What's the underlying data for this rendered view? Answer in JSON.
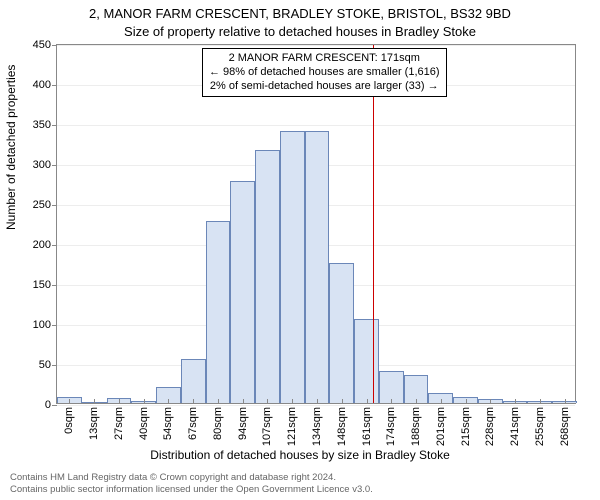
{
  "title": "2, MANOR FARM CRESCENT, BRADLEY STOKE, BRISTOL, BS32 9BD",
  "subtitle": "Size of property relative to detached houses in Bradley Stoke",
  "ylabel": "Number of detached properties",
  "xlabel": "Distribution of detached houses by size in Bradley Stoke",
  "chart": {
    "type": "histogram",
    "ylim": [
      0,
      450
    ],
    "ytick_step": 50,
    "yticks": [
      0,
      50,
      100,
      150,
      200,
      250,
      300,
      350,
      400,
      450
    ],
    "xticks": [
      "0sqm",
      "13sqm",
      "27sqm",
      "40sqm",
      "54sqm",
      "67sqm",
      "80sqm",
      "94sqm",
      "107sqm",
      "121sqm",
      "134sqm",
      "148sqm",
      "161sqm",
      "174sqm",
      "188sqm",
      "201sqm",
      "215sqm",
      "228sqm",
      "241sqm",
      "255sqm",
      "268sqm"
    ],
    "values": [
      7,
      0,
      6,
      3,
      20,
      55,
      228,
      278,
      316,
      340,
      340,
      175,
      105,
      40,
      35,
      12,
      7,
      5,
      3,
      3,
      2
    ],
    "bar_fill": "#d8e3f3",
    "bar_stroke": "#6b87b8",
    "bar_width_ratio": 1.0,
    "background_color": "#ffffff",
    "axis_color": "#888888",
    "marker_value_sqm": 171,
    "marker_color": "#cc0000",
    "n_bars": 21
  },
  "annotation": {
    "line1": "2 MANOR FARM CRESCENT: 171sqm",
    "line2": "← 98% of detached houses are smaller (1,616)",
    "line3": "2% of semi-detached houses are larger (33) →"
  },
  "footer": {
    "line1": "Contains HM Land Registry data © Crown copyright and database right 2024.",
    "line2": "Contains public sector information licensed under the Open Government Licence v3.0."
  }
}
